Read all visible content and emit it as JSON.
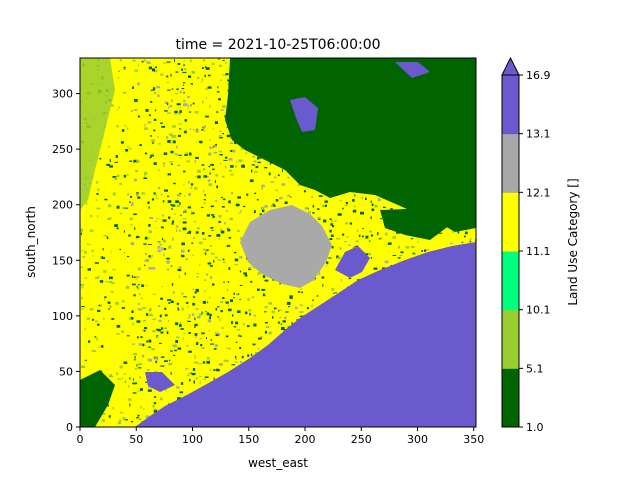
{
  "chart_data": {
    "type": "heatmap",
    "title": "time = 2021-10-25T06:00:00",
    "xlabel": "west_east",
    "ylabel": "south_north",
    "xlim": [
      0,
      352
    ],
    "ylim": [
      0,
      332
    ],
    "xticks": [
      "0",
      "50",
      "100",
      "150",
      "200",
      "250",
      "300",
      "350"
    ],
    "yticks": [
      "0",
      "50",
      "100",
      "150",
      "200",
      "250",
      "300"
    ],
    "colorbar": {
      "label": "Land Use Category []",
      "extend": "max",
      "ticks": [
        "1.0",
        "5.1",
        "10.1",
        "11.1",
        "12.1",
        "13.1",
        "16.9"
      ],
      "bins": [
        {
          "from": 1.0,
          "to": 5.1,
          "color": "#006400"
        },
        {
          "from": 5.1,
          "to": 10.1,
          "color": "#9acd32"
        },
        {
          "from": 10.1,
          "to": 11.1,
          "color": "#00ff7f"
        },
        {
          "from": 11.1,
          "to": 12.1,
          "color": "#ffff00"
        },
        {
          "from": 12.1,
          "to": 13.1,
          "color": "#a9a9a9"
        },
        {
          "from": 13.1,
          "to": 16.9,
          "color": "#6a5acd"
        }
      ]
    },
    "regions": {
      "forest_color": "#006400",
      "grass_color": "#9acd32",
      "crop_color": "#ffff00",
      "urban_color": "#a9a9a9",
      "water_color": "#6a5acd"
    }
  }
}
